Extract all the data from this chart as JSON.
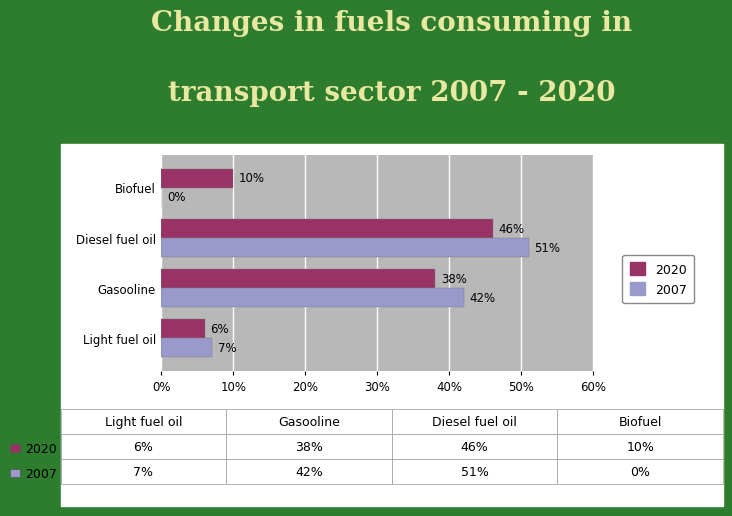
{
  "title_line1": "Changes in fuels consuming in",
  "title_line2": "transport sector 2007 - 2020",
  "title_color": "#E8E8A0",
  "bg_color": "#2E7D2E",
  "chart_panel_color": "#FFFFFF",
  "chart_area_color": "#B8B8B8",
  "categories": [
    "Light fuel oil",
    "Gasooline",
    "Diesel fuel oil",
    "Biofuel"
  ],
  "series_2020": [
    6,
    38,
    46,
    10
  ],
  "series_2007": [
    7,
    42,
    51,
    0
  ],
  "color_2020": "#993366",
  "color_2007": "#9999CC",
  "xlim_max": 60,
  "xticks": [
    0,
    10,
    20,
    30,
    40,
    50,
    60
  ],
  "bar_height": 0.38,
  "legend_labels": [
    "2020",
    "2007"
  ],
  "col_labels": [
    "Light fuel oil",
    "Gasooline",
    "Diesel fuel oil",
    "Biofuel"
  ],
  "row_labels": [
    "2020",
    "2007"
  ],
  "values_2020": [
    "6%",
    "38%",
    "46%",
    "10%"
  ],
  "values_2007": [
    "7%",
    "42%",
    "51%",
    "0%"
  ]
}
